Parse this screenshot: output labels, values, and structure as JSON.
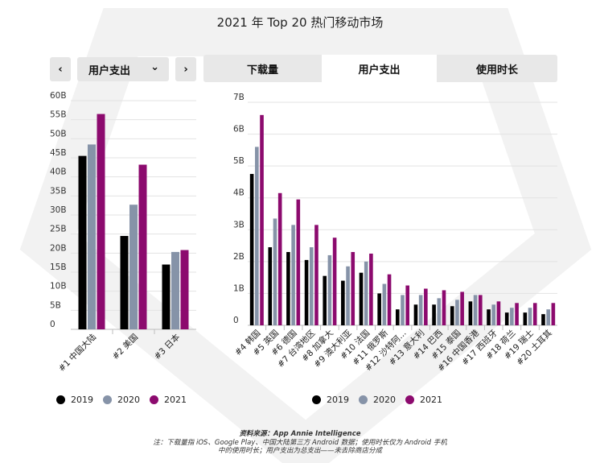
{
  "title": "2021 年 Top 20 热门移动市场",
  "controls": {
    "prev_icon": "‹",
    "next_icon": "›",
    "selected_metric": "用户支出",
    "dropdown_icon": "⌄"
  },
  "tabs": [
    {
      "label": "下载量",
      "active": false
    },
    {
      "label": "用户支出",
      "active": true
    },
    {
      "label": "使用时长",
      "active": false
    }
  ],
  "legend": [
    {
      "label": "2019",
      "color": "#000000"
    },
    {
      "label": "2020",
      "color": "#8693a8"
    },
    {
      "label": "2021",
      "color": "#8c0a6e"
    }
  ],
  "note": {
    "source": "资料来源：App Annie Intelligence",
    "line1": "注：下载量指 iOS、Google Play、中国大陆第三方 Android 数据；使用时长仅为 Android 手机",
    "line2": "中的使用时长；用户支出为总支出——未去除商店分成"
  },
  "chart_data": [
    {
      "type": "bar",
      "ylim": [
        0,
        60
      ],
      "yticks": [
        {
          "value": 0,
          "label": "0"
        },
        {
          "value": 5,
          "label": "5B"
        },
        {
          "value": 10,
          "label": "10B"
        },
        {
          "value": 15,
          "label": "15B"
        },
        {
          "value": 20,
          "label": "20B"
        },
        {
          "value": 25,
          "label": "25B"
        },
        {
          "value": 30,
          "label": "30B"
        },
        {
          "value": 35,
          "label": "35B"
        },
        {
          "value": 40,
          "label": "40B"
        },
        {
          "value": 45,
          "label": "45B"
        },
        {
          "value": 50,
          "label": "50B"
        },
        {
          "value": 55,
          "label": "55B"
        },
        {
          "value": 60,
          "label": "60B"
        }
      ],
      "categories": [
        "#1 中国大陆",
        "#2 美国",
        "#3 日本"
      ],
      "series": [
        {
          "name": "2019",
          "color": "#000000",
          "values": [
            45.5,
            24.5,
            17.0
          ]
        },
        {
          "name": "2020",
          "color": "#8693a8",
          "values": [
            48.5,
            32.7,
            20.3
          ]
        },
        {
          "name": "2021",
          "color": "#8c0a6e",
          "values": [
            56.5,
            43.2,
            20.8
          ]
        }
      ]
    },
    {
      "type": "bar",
      "ylim": [
        0,
        7
      ],
      "yticks": [
        {
          "value": 0,
          "label": "0"
        },
        {
          "value": 1,
          "label": "1B"
        },
        {
          "value": 2,
          "label": "2B"
        },
        {
          "value": 3,
          "label": "3B"
        },
        {
          "value": 4,
          "label": "4B"
        },
        {
          "value": 5,
          "label": "5B"
        },
        {
          "value": 6,
          "label": "6B"
        },
        {
          "value": 7,
          "label": "7B"
        }
      ],
      "categories": [
        "#4 韩国",
        "#5 英国",
        "#6 德国",
        "#7 台湾地区",
        "#8 加拿大",
        "#9 澳大利亚",
        "#10 法国",
        "#11 俄罗斯",
        "#12 沙特阿...",
        "#13 意大利",
        "#14 巴西",
        "#15 泰国",
        "#16 中国香港",
        "#17 西班牙",
        "#18 荷兰",
        "#19 瑞士",
        "#20 土耳其"
      ],
      "series": [
        {
          "name": "2019",
          "color": "#000000",
          "values": [
            4.75,
            2.45,
            2.3,
            2.05,
            1.55,
            1.4,
            1.65,
            1.0,
            0.5,
            0.65,
            0.65,
            0.6,
            0.75,
            0.5,
            0.4,
            0.4,
            0.35
          ]
        },
        {
          "name": "2020",
          "color": "#8693a8",
          "values": [
            5.6,
            3.35,
            3.15,
            2.45,
            2.2,
            1.85,
            2.0,
            1.3,
            0.95,
            0.95,
            0.85,
            0.8,
            0.95,
            0.65,
            0.55,
            0.55,
            0.5
          ]
        },
        {
          "name": "2021",
          "color": "#8c0a6e",
          "values": [
            6.6,
            4.15,
            3.95,
            3.15,
            2.75,
            2.3,
            2.25,
            1.6,
            1.25,
            1.15,
            1.1,
            1.05,
            0.95,
            0.75,
            0.7,
            0.7,
            0.7
          ]
        }
      ]
    }
  ]
}
